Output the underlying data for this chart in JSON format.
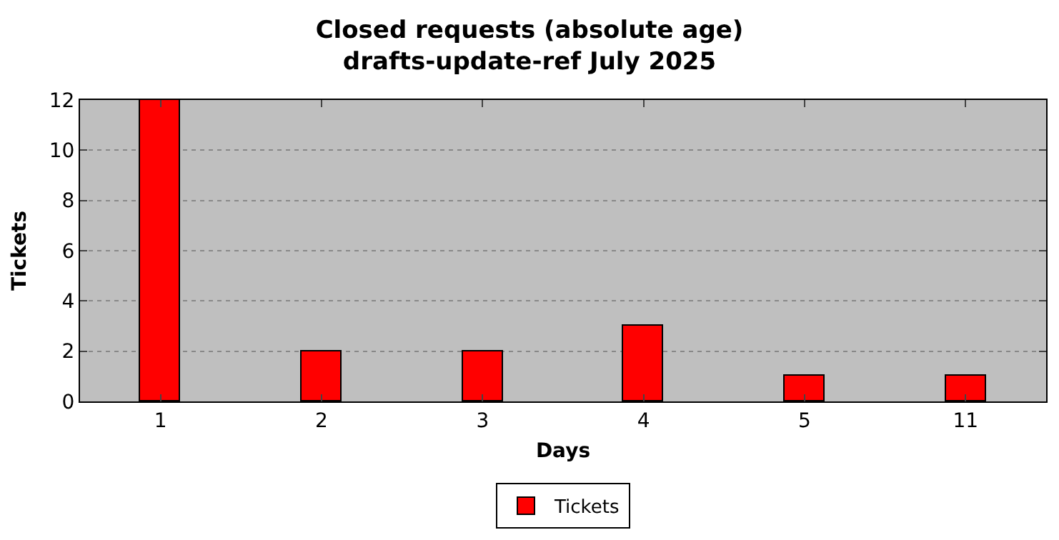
{
  "chart_data": {
    "type": "bar",
    "title": "Closed requests (absolute age)\ndrafts-update-ref July 2025",
    "xlabel": "Days",
    "ylabel": "Tickets",
    "categories": [
      "1",
      "2",
      "3",
      "4",
      "5",
      "11"
    ],
    "series": [
      {
        "name": "Tickets",
        "color": "#ff0000",
        "values": [
          12,
          2,
          2,
          3,
          1,
          1
        ]
      }
    ],
    "ylim": [
      0,
      12
    ],
    "yticks": [
      0,
      2,
      4,
      6,
      8,
      10,
      12
    ],
    "grid": "y",
    "legend": "bottom"
  }
}
